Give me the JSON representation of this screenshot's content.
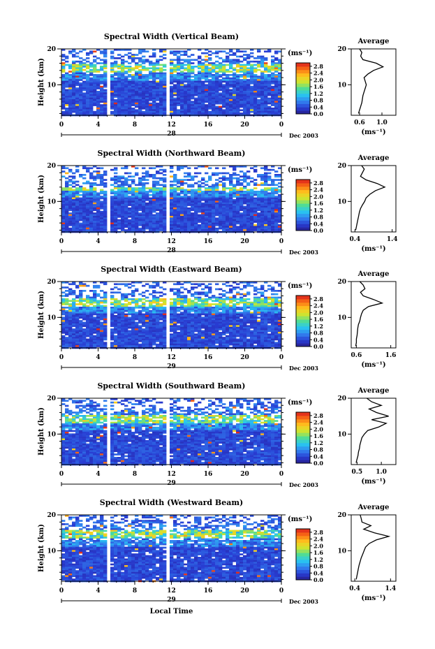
{
  "chart_data": [
    {
      "type": "heatmap",
      "title": "Spectral Width (Vertical Beam)",
      "ylabel": "Height (km)",
      "x_ticks": [
        "0",
        "4",
        "8",
        "12",
        "16",
        "20",
        "0"
      ],
      "y_ticks": [
        "10",
        "20"
      ],
      "day_label": "28",
      "month_label": "Dec 2003",
      "colorbar": {
        "unit": "(ms⁻¹)",
        "ticks": [
          "0.0",
          "0.4",
          "0.8",
          "1.2",
          "1.6",
          "2.0",
          "2.4",
          "2.8"
        ],
        "range": [
          0.0,
          3.0
        ]
      },
      "gaps": [
        [
          4.8,
          5.3
        ],
        [
          11.3,
          11.9
        ]
      ],
      "profile": {
        "title": "Average",
        "xlabel": "(ms⁻¹)",
        "x_ticks": [
          "0.6",
          "1.0"
        ],
        "xlim": [
          0.45,
          1.25
        ],
        "ylim": [
          1.5,
          20
        ],
        "y_ticks": [
          "10",
          "20"
        ],
        "heights": [
          2,
          3,
          4,
          5,
          6,
          7,
          8,
          9,
          10,
          11,
          12,
          13,
          14,
          15,
          16,
          17,
          18,
          19,
          20
        ],
        "values": [
          0.58,
          0.6,
          0.62,
          0.64,
          0.65,
          0.66,
          0.68,
          0.7,
          0.72,
          0.7,
          0.68,
          0.75,
          0.85,
          1.02,
          0.9,
          0.66,
          0.62,
          0.64,
          0.6
        ]
      }
    },
    {
      "type": "heatmap",
      "title": "Spectral Width (Northward Beam)",
      "ylabel": "Height (km)",
      "x_ticks": [
        "0",
        "4",
        "8",
        "12",
        "16",
        "20",
        "0"
      ],
      "y_ticks": [
        "10",
        "20"
      ],
      "day_label": "28",
      "month_label": "Dec 2003",
      "colorbar": {
        "unit": "(ms⁻¹)",
        "ticks": [
          "0.0",
          "0.4",
          "0.8",
          "1.2",
          "1.6",
          "2.0",
          "2.4",
          "2.8"
        ],
        "range": [
          0.0,
          3.0
        ]
      },
      "gaps": [
        [
          4.8,
          5.3
        ],
        [
          11.3,
          11.9
        ]
      ],
      "profile": {
        "title": "Average",
        "xlabel": "(ms⁻¹)",
        "x_ticks": [
          "0.4",
          "1.4"
        ],
        "xlim": [
          0.3,
          1.5
        ],
        "ylim": [
          1.5,
          20
        ],
        "y_ticks": [
          "10",
          "20"
        ],
        "heights": [
          2,
          3,
          4,
          5,
          6,
          7,
          8,
          9,
          10,
          11,
          12,
          13,
          14,
          15,
          16,
          17,
          18,
          19,
          20
        ],
        "values": [
          0.42,
          0.44,
          0.46,
          0.48,
          0.5,
          0.52,
          0.55,
          0.6,
          0.66,
          0.7,
          0.8,
          0.95,
          1.2,
          1.0,
          0.7,
          0.55,
          0.6,
          0.65,
          0.58
        ]
      }
    },
    {
      "type": "heatmap",
      "title": "Spectral Width (Eastward Beam)",
      "ylabel": "Height (km)",
      "x_ticks": [
        "0",
        "4",
        "8",
        "12",
        "16",
        "20",
        "0"
      ],
      "y_ticks": [
        "10",
        "20"
      ],
      "day_label": "29",
      "month_label": "Dec 2003",
      "colorbar": {
        "unit": "(ms⁻¹)",
        "ticks": [
          "0.0",
          "0.4",
          "0.8",
          "1.2",
          "1.6",
          "2.0",
          "2.4",
          "2.8"
        ],
        "range": [
          0.0,
          3.0
        ]
      },
      "gaps": [
        [
          4.8,
          5.3
        ],
        [
          11.3,
          11.9
        ]
      ],
      "profile": {
        "title": "Average",
        "xlabel": "(ms⁻¹)",
        "x_ticks": [
          "0.6",
          "1.6"
        ],
        "xlim": [
          0.45,
          1.75
        ],
        "ylim": [
          1.5,
          20
        ],
        "y_ticks": [
          "10",
          "20"
        ],
        "heights": [
          2,
          3,
          4,
          5,
          6,
          7,
          8,
          9,
          10,
          11,
          12,
          13,
          14,
          15,
          16,
          17,
          18,
          19,
          20
        ],
        "values": [
          0.58,
          0.6,
          0.6,
          0.62,
          0.63,
          0.64,
          0.66,
          0.7,
          0.72,
          0.75,
          0.8,
          0.95,
          1.35,
          1.1,
          0.8,
          0.72,
          0.85,
          0.8,
          0.7
        ]
      }
    },
    {
      "type": "heatmap",
      "title": "Spectral Width (Southward Beam)",
      "ylabel": "Height (km)",
      "x_ticks": [
        "0",
        "4",
        "8",
        "12",
        "16",
        "20",
        "0"
      ],
      "y_ticks": [
        "10",
        "20"
      ],
      "day_label": "29",
      "month_label": "Dec 2003",
      "colorbar": {
        "unit": "(ms⁻¹)",
        "ticks": [
          "0.0",
          "0.4",
          "0.8",
          "1.2",
          "1.6",
          "2.0",
          "2.4",
          "2.8"
        ],
        "range": [
          0.0,
          3.0
        ]
      },
      "gaps": [
        [
          4.8,
          5.3
        ],
        [
          11.3,
          11.9
        ]
      ],
      "profile": {
        "title": "Average",
        "xlabel": "(ms⁻¹)",
        "x_ticks": [
          "0.5",
          "1.0"
        ],
        "xlim": [
          0.38,
          1.3
        ],
        "ylim": [
          1.5,
          20
        ],
        "y_ticks": [
          "10",
          "20"
        ],
        "heights": [
          2,
          3,
          4,
          5,
          6,
          7,
          8,
          9,
          10,
          11,
          12,
          13,
          14,
          15,
          16,
          17,
          18,
          19,
          20
        ],
        "values": [
          0.48,
          0.5,
          0.52,
          0.53,
          0.55,
          0.56,
          0.58,
          0.6,
          0.65,
          0.72,
          0.95,
          1.1,
          0.8,
          1.15,
          0.9,
          0.75,
          1.0,
          0.8,
          0.7
        ]
      }
    },
    {
      "type": "heatmap",
      "title": "Spectral Width (Westward Beam)",
      "ylabel": "Height (km)",
      "x_ticks": [
        "0",
        "4",
        "8",
        "12",
        "16",
        "20",
        "0"
      ],
      "y_ticks": [
        "10",
        "20"
      ],
      "day_label": "29",
      "month_label": "Dec 2003",
      "xlabel": "Local Time",
      "colorbar": {
        "unit": "(ms⁻¹)",
        "ticks": [
          "0.0",
          "0.4",
          "0.8",
          "1.2",
          "1.6",
          "2.0",
          "2.4",
          "2.8"
        ],
        "range": [
          0.0,
          3.0
        ]
      },
      "gaps": [
        [
          4.8,
          5.3
        ],
        [
          11.3,
          11.9
        ]
      ],
      "profile": {
        "title": "Average",
        "xlabel": "(ms⁻¹)",
        "x_ticks": [
          "0.4",
          "1.4"
        ],
        "xlim": [
          0.3,
          1.55
        ],
        "ylim": [
          1.5,
          20
        ],
        "y_ticks": [
          "10",
          "20"
        ],
        "heights": [
          2,
          3,
          4,
          5,
          6,
          7,
          8,
          9,
          10,
          11,
          12,
          13,
          14,
          15,
          16,
          17,
          18,
          19,
          20
        ],
        "values": [
          0.44,
          0.46,
          0.48,
          0.5,
          0.52,
          0.55,
          0.58,
          0.62,
          0.66,
          0.7,
          0.8,
          1.0,
          1.35,
          0.95,
          0.65,
          0.85,
          0.6,
          0.58,
          0.55
        ]
      }
    }
  ]
}
